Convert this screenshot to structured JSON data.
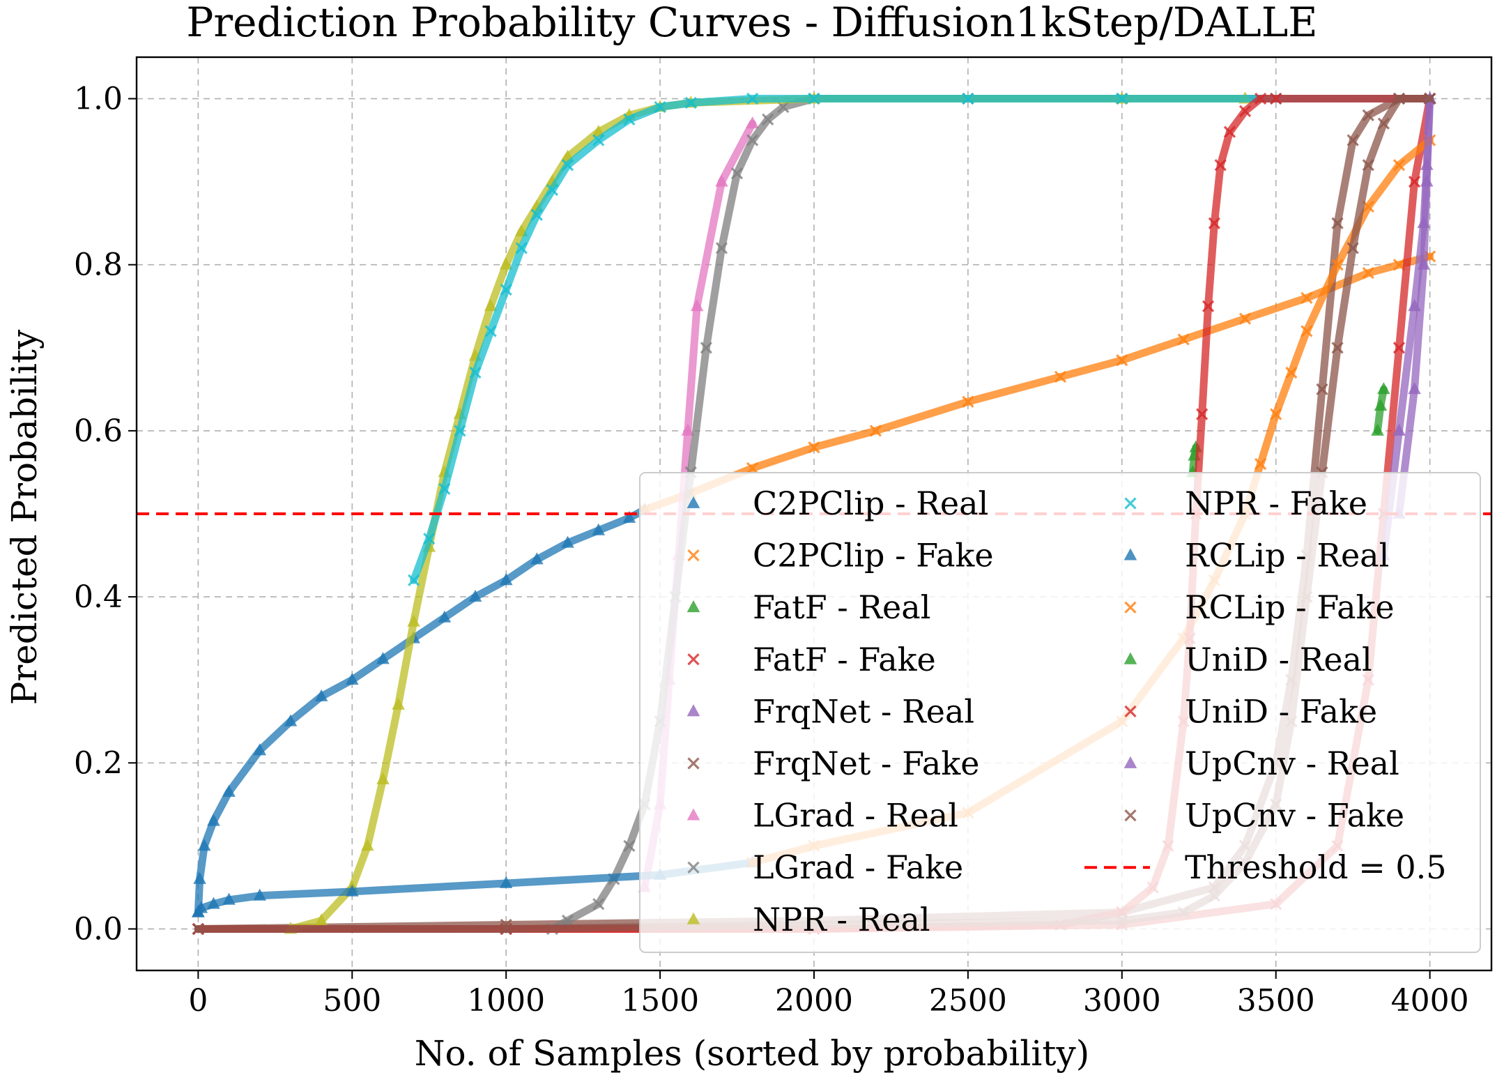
{
  "chart_data": {
    "type": "scatter",
    "title": "Prediction Probability Curves - Diffusion1kStep/DALLE",
    "xlabel": "No. of Samples (sorted by probability)",
    "ylabel": "Predicted Probability",
    "xlim": [
      -200,
      4200
    ],
    "ylim": [
      -0.05,
      1.05
    ],
    "xticks": [
      0,
      500,
      1000,
      1500,
      2000,
      2500,
      3000,
      3500,
      4000
    ],
    "yticks": [
      0.0,
      0.2,
      0.4,
      0.6,
      0.8,
      1.0
    ],
    "xtick_labels": [
      "0",
      "500",
      "1000",
      "1500",
      "2000",
      "2500",
      "3000",
      "3500",
      "4000"
    ],
    "ytick_labels": [
      "0.0",
      "0.2",
      "0.4",
      "0.6",
      "0.8",
      "1.0"
    ],
    "grid": true,
    "legend_position": "lower-right",
    "threshold": {
      "value": 0.5,
      "label": "Threshold = 0.5",
      "color": "#ff0000"
    },
    "series": [
      {
        "name": "C2PClip - Real",
        "marker": "triangle",
        "color": "#1f77b4",
        "x": [
          0,
          5,
          20,
          50,
          100,
          200,
          300,
          400,
          500,
          600,
          700,
          800,
          900,
          1000,
          1100,
          1200,
          1300,
          1400,
          1450
        ],
        "y": [
          0.02,
          0.06,
          0.1,
          0.13,
          0.165,
          0.215,
          0.25,
          0.28,
          0.3,
          0.325,
          0.35,
          0.375,
          0.4,
          0.42,
          0.445,
          0.465,
          0.48,
          0.495,
          0.505
        ]
      },
      {
        "name": "C2PClip - Fake",
        "marker": "x",
        "color": "#ff7f0e",
        "x": [
          1450,
          1600,
          1800,
          2000,
          2200,
          2500,
          2800,
          3000,
          3200,
          3400,
          3600,
          3800,
          3900,
          4000
        ],
        "y": [
          0.505,
          0.525,
          0.555,
          0.58,
          0.6,
          0.635,
          0.665,
          0.685,
          0.71,
          0.735,
          0.76,
          0.79,
          0.8,
          0.81
        ]
      },
      {
        "name": "FatF - Real",
        "marker": "triangle",
        "color": "#2ca02c",
        "x": [
          3830,
          3840,
          3850
        ],
        "y": [
          0.6,
          0.63,
          0.65
        ]
      },
      {
        "name": "FatF - Fake",
        "marker": "x",
        "color": "#d62728",
        "x": [
          0,
          1000,
          2000,
          3000,
          3500,
          3700,
          3800,
          3850,
          3900,
          3950,
          4000
        ],
        "y": [
          0.0,
          0.0,
          0.0,
          0.005,
          0.03,
          0.1,
          0.3,
          0.5,
          0.7,
          0.9,
          1.0
        ]
      },
      {
        "name": "FrqNet - Real",
        "marker": "triangle",
        "color": "#9467bd",
        "x": [
          3850,
          3900,
          3950,
          3980,
          3990,
          4000
        ],
        "y": [
          0.45,
          0.6,
          0.75,
          0.85,
          0.92,
          1.0
        ]
      },
      {
        "name": "FrqNet - Fake",
        "marker": "x",
        "color": "#8c564b",
        "x": [
          0,
          1000,
          2000,
          3000,
          3300,
          3400,
          3500,
          3550,
          3600,
          3650,
          3700,
          3750,
          3800,
          3900,
          4000
        ],
        "y": [
          0.0,
          0.005,
          0.01,
          0.02,
          0.05,
          0.1,
          0.2,
          0.3,
          0.45,
          0.65,
          0.85,
          0.95,
          0.98,
          1.0,
          1.0
        ]
      },
      {
        "name": "LGrad - Real",
        "marker": "triangle",
        "color": "#e377c2",
        "x": [
          1450,
          1500,
          1530,
          1560,
          1590,
          1620,
          1700,
          1800
        ],
        "y": [
          0.05,
          0.15,
          0.3,
          0.45,
          0.6,
          0.75,
          0.9,
          0.97
        ]
      },
      {
        "name": "LGrad - Fake",
        "marker": "x",
        "color": "#7f7f7f",
        "x": [
          1150,
          1200,
          1300,
          1350,
          1400,
          1450,
          1500,
          1550,
          1600,
          1650,
          1700,
          1750,
          1800,
          1850,
          1900,
          2000,
          2500,
          3000,
          4000
        ],
        "y": [
          0.0,
          0.01,
          0.03,
          0.06,
          0.1,
          0.15,
          0.25,
          0.4,
          0.55,
          0.7,
          0.82,
          0.91,
          0.95,
          0.975,
          0.99,
          1.0,
          1.0,
          1.0,
          1.0
        ]
      },
      {
        "name": "NPR - Real",
        "marker": "triangle",
        "color": "#bcbd22",
        "x": [
          300,
          400,
          500,
          550,
          600,
          650,
          700,
          750,
          800,
          850,
          900,
          950,
          1000,
          1050,
          1100,
          1150,
          1200,
          1300,
          1400,
          1500,
          1600,
          2000,
          3000,
          3400
        ],
        "y": [
          0.0,
          0.01,
          0.05,
          0.1,
          0.18,
          0.27,
          0.37,
          0.46,
          0.55,
          0.62,
          0.69,
          0.75,
          0.8,
          0.84,
          0.87,
          0.9,
          0.93,
          0.96,
          0.98,
          0.99,
          0.995,
          1.0,
          1.0,
          1.0
        ]
      },
      {
        "name": "NPR - Fake",
        "marker": "x",
        "color": "#17becf",
        "x": [
          700,
          750,
          800,
          850,
          900,
          950,
          1000,
          1050,
          1100,
          1150,
          1200,
          1300,
          1400,
          1500,
          1600,
          1800,
          2000,
          2500,
          3000,
          3500,
          4000
        ],
        "y": [
          0.42,
          0.47,
          0.53,
          0.6,
          0.67,
          0.72,
          0.77,
          0.82,
          0.86,
          0.89,
          0.92,
          0.95,
          0.975,
          0.99,
          0.995,
          1.0,
          1.0,
          1.0,
          1.0,
          1.0,
          1.0
        ]
      },
      {
        "name": "RCLip - Real",
        "marker": "triangle",
        "color": "#1f77b4",
        "x": [
          0,
          10,
          50,
          100,
          200,
          500,
          1000,
          1500,
          1800
        ],
        "y": [
          0.02,
          0.025,
          0.03,
          0.035,
          0.04,
          0.045,
          0.055,
          0.065,
          0.08
        ]
      },
      {
        "name": "RCLip - Fake",
        "marker": "x",
        "color": "#ff7f0e",
        "x": [
          1800,
          2000,
          2500,
          3000,
          3200,
          3300,
          3400,
          3450,
          3500,
          3550,
          3600,
          3700,
          3800,
          3900,
          4000
        ],
        "y": [
          0.08,
          0.1,
          0.14,
          0.25,
          0.35,
          0.42,
          0.5,
          0.56,
          0.62,
          0.67,
          0.72,
          0.8,
          0.87,
          0.92,
          0.95
        ]
      },
      {
        "name": "UniD - Real",
        "marker": "triangle",
        "color": "#2ca02c",
        "x": [
          3230,
          3235,
          3240
        ],
        "y": [
          0.55,
          0.57,
          0.58
        ]
      },
      {
        "name": "UniD - Fake",
        "marker": "x",
        "color": "#d62728",
        "x": [
          0,
          1000,
          2000,
          2800,
          3000,
          3100,
          3150,
          3200,
          3220,
          3240,
          3260,
          3280,
          3300,
          3320,
          3350,
          3400,
          3450,
          3500,
          4000
        ],
        "y": [
          0.0,
          0.0,
          0.0,
          0.005,
          0.02,
          0.05,
          0.1,
          0.25,
          0.35,
          0.5,
          0.62,
          0.75,
          0.85,
          0.92,
          0.96,
          0.985,
          1.0,
          1.0,
          1.0
        ]
      },
      {
        "name": "UpCnv - Real",
        "marker": "triangle",
        "color": "#9467bd",
        "x": [
          3900,
          3950,
          3980,
          3990,
          4000
        ],
        "y": [
          0.5,
          0.65,
          0.8,
          0.9,
          1.0
        ]
      },
      {
        "name": "UpCnv - Fake",
        "marker": "x",
        "color": "#8c564b",
        "x": [
          0,
          1000,
          2000,
          3000,
          3200,
          3300,
          3400,
          3500,
          3550,
          3600,
          3650,
          3700,
          3750,
          3800,
          3850,
          3900,
          4000
        ],
        "y": [
          0.0,
          0.0,
          0.005,
          0.01,
          0.02,
          0.04,
          0.08,
          0.15,
          0.25,
          0.4,
          0.55,
          0.7,
          0.82,
          0.92,
          0.97,
          1.0,
          1.0
        ]
      }
    ]
  }
}
